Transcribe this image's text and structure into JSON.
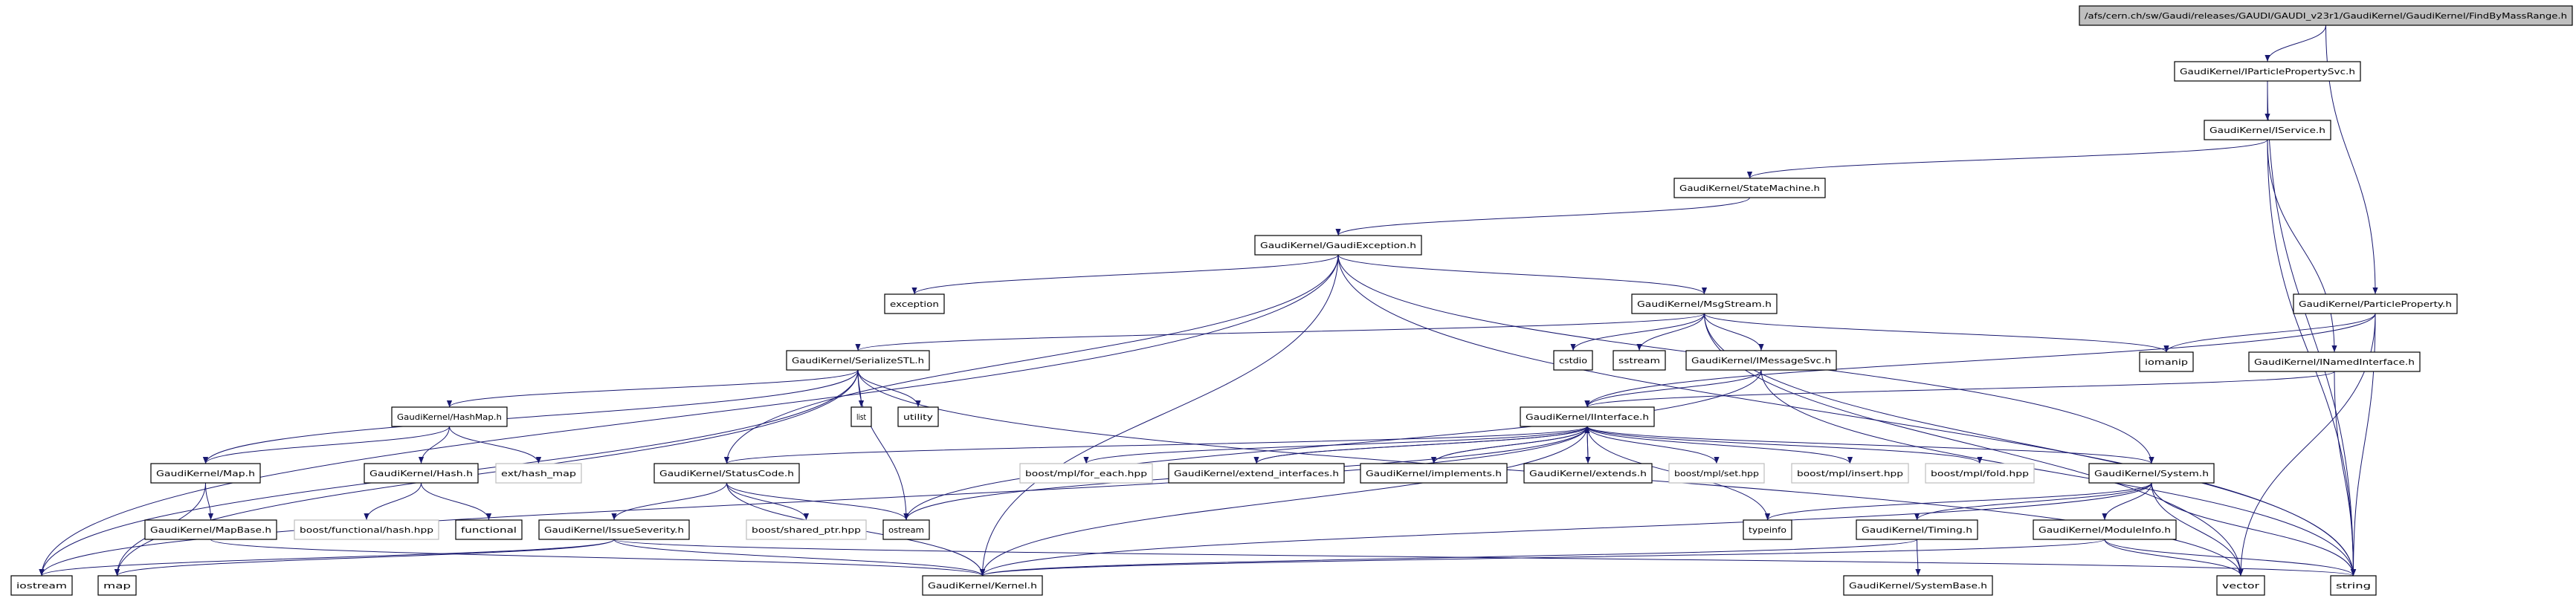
{
  "graph_type": "include dependency graph",
  "edge_color": "#191970",
  "root_fill": "#bfbfbf",
  "external_border": "#bfbfbf",
  "nodes": [
    {
      "id": "root",
      "label": "/afs/cern.ch/sw/Gaudi/releases/GAUDI/GAUDI_v23r1/GaudiKernel/GaudiKernel/FindByMassRange.h",
      "kind": "root"
    },
    {
      "id": "ipps",
      "label": "GaudiKernel/IParticlePropertySvc.h",
      "kind": "doc"
    },
    {
      "id": "iservice",
      "label": "GaudiKernel/IService.h",
      "kind": "doc"
    },
    {
      "id": "statemachine",
      "label": "GaudiKernel/StateMachine.h",
      "kind": "doc"
    },
    {
      "id": "gexc",
      "label": "GaudiKernel/GaudiException.h",
      "kind": "doc"
    },
    {
      "id": "exception",
      "label": "exception",
      "kind": "doc"
    },
    {
      "id": "msgstream",
      "label": "GaudiKernel/MsgStream.h",
      "kind": "doc"
    },
    {
      "id": "pprop",
      "label": "GaudiKernel/ParticleProperty.h",
      "kind": "doc"
    },
    {
      "id": "serial",
      "label": "GaudiKernel/SerializeSTL.h",
      "kind": "doc"
    },
    {
      "id": "cstdio",
      "label": "cstdio",
      "kind": "doc"
    },
    {
      "id": "sstream",
      "label": "sstream",
      "kind": "doc"
    },
    {
      "id": "imsg",
      "label": "GaudiKernel/IMessageSvc.h",
      "kind": "doc"
    },
    {
      "id": "iomanip",
      "label": "iomanip",
      "kind": "doc"
    },
    {
      "id": "inamed",
      "label": "GaudiKernel/INamedInterface.h",
      "kind": "doc"
    },
    {
      "id": "list",
      "label": "list",
      "kind": "doc"
    },
    {
      "id": "utility",
      "label": "utility",
      "kind": "doc"
    },
    {
      "id": "hashmap",
      "label": "GaudiKernel/HashMap.h",
      "kind": "doc"
    },
    {
      "id": "iinterface",
      "label": "GaudiKernel/IInterface.h",
      "kind": "doc"
    },
    {
      "id": "map_h",
      "label": "GaudiKernel/Map.h",
      "kind": "doc"
    },
    {
      "id": "hash_h",
      "label": "GaudiKernel/Hash.h",
      "kind": "doc"
    },
    {
      "id": "exthash",
      "label": "ext/hash_map",
      "kind": "ext"
    },
    {
      "id": "statuscode",
      "label": "GaudiKernel/StatusCode.h",
      "kind": "doc"
    },
    {
      "id": "foreach",
      "label": "boost/mpl/for_each.hpp",
      "kind": "ext"
    },
    {
      "id": "extif",
      "label": "GaudiKernel/extend_interfaces.h",
      "kind": "doc"
    },
    {
      "id": "implements",
      "label": "GaudiKernel/implements.h",
      "kind": "doc"
    },
    {
      "id": "extends",
      "label": "GaudiKernel/extends.h",
      "kind": "doc"
    },
    {
      "id": "mplset",
      "label": "boost/mpl/set.hpp",
      "kind": "ext"
    },
    {
      "id": "mplinsert",
      "label": "boost/mpl/insert.hpp",
      "kind": "ext"
    },
    {
      "id": "mplfold",
      "label": "boost/mpl/fold.hpp",
      "kind": "ext"
    },
    {
      "id": "system",
      "label": "GaudiKernel/System.h",
      "kind": "doc"
    },
    {
      "id": "mapbase",
      "label": "GaudiKernel/MapBase.h",
      "kind": "doc"
    },
    {
      "id": "bfhash",
      "label": "boost/functional/hash.hpp",
      "kind": "ext"
    },
    {
      "id": "functional",
      "label": "functional",
      "kind": "doc"
    },
    {
      "id": "issue",
      "label": "GaudiKernel/IssueSeverity.h",
      "kind": "doc"
    },
    {
      "id": "sharedptr",
      "label": "boost/shared_ptr.hpp",
      "kind": "ext"
    },
    {
      "id": "ostream",
      "label": "ostream",
      "kind": "doc"
    },
    {
      "id": "typeinfo",
      "label": "typeinfo",
      "kind": "doc"
    },
    {
      "id": "timing",
      "label": "GaudiKernel/Timing.h",
      "kind": "doc"
    },
    {
      "id": "moduleinfo",
      "label": "GaudiKernel/ModuleInfo.h",
      "kind": "doc"
    },
    {
      "id": "iostream",
      "label": "iostream",
      "kind": "doc"
    },
    {
      "id": "map",
      "label": "map",
      "kind": "doc"
    },
    {
      "id": "kernel",
      "label": "GaudiKernel/Kernel.h",
      "kind": "doc"
    },
    {
      "id": "sysbase",
      "label": "GaudiKernel/SystemBase.h",
      "kind": "doc"
    },
    {
      "id": "vector",
      "label": "vector",
      "kind": "doc"
    },
    {
      "id": "string",
      "label": "string",
      "kind": "doc"
    }
  ],
  "edges": [
    [
      "root",
      "ipps"
    ],
    [
      "root",
      "pprop"
    ],
    [
      "ipps",
      "iservice"
    ],
    [
      "ipps",
      "string"
    ],
    [
      "iservice",
      "statemachine"
    ],
    [
      "iservice",
      "inamed"
    ],
    [
      "iservice",
      "string"
    ],
    [
      "statemachine",
      "gexc"
    ],
    [
      "gexc",
      "exception"
    ],
    [
      "gexc",
      "msgstream"
    ],
    [
      "gexc",
      "iostream"
    ],
    [
      "gexc",
      "statuscode"
    ],
    [
      "gexc",
      "kernel"
    ],
    [
      "gexc",
      "system"
    ],
    [
      "gexc",
      "string"
    ],
    [
      "msgstream",
      "serial"
    ],
    [
      "msgstream",
      "cstdio"
    ],
    [
      "msgstream",
      "sstream"
    ],
    [
      "msgstream",
      "imsg"
    ],
    [
      "msgstream",
      "iomanip"
    ],
    [
      "msgstream",
      "string"
    ],
    [
      "msgstream",
      "vector"
    ],
    [
      "pprop",
      "iomanip"
    ],
    [
      "pprop",
      "iinterface"
    ],
    [
      "pprop",
      "string"
    ],
    [
      "pprop",
      "vector"
    ],
    [
      "inamed",
      "iinterface"
    ],
    [
      "inamed",
      "string"
    ],
    [
      "serial",
      "list"
    ],
    [
      "serial",
      "utility"
    ],
    [
      "serial",
      "hashmap"
    ],
    [
      "serial",
      "map_h"
    ],
    [
      "serial",
      "iostream"
    ],
    [
      "serial",
      "map"
    ],
    [
      "serial",
      "ostream"
    ],
    [
      "serial",
      "vector"
    ],
    [
      "imsg",
      "iinterface"
    ],
    [
      "imsg",
      "ostream"
    ],
    [
      "imsg",
      "string"
    ],
    [
      "hashmap",
      "map_h"
    ],
    [
      "hashmap",
      "hash_h"
    ],
    [
      "hashmap",
      "exthash"
    ],
    [
      "iinterface",
      "statuscode"
    ],
    [
      "iinterface",
      "foreach"
    ],
    [
      "iinterface",
      "extif"
    ],
    [
      "iinterface",
      "implements"
    ],
    [
      "iinterface",
      "extends"
    ],
    [
      "iinterface",
      "mplset"
    ],
    [
      "iinterface",
      "mplinsert"
    ],
    [
      "iinterface",
      "mplfold"
    ],
    [
      "iinterface",
      "system"
    ],
    [
      "iinterface",
      "ostream"
    ],
    [
      "iinterface",
      "kernel"
    ],
    [
      "iinterface",
      "typeinfo"
    ],
    [
      "iinterface",
      "iostream"
    ],
    [
      "extif",
      "iinterface"
    ],
    [
      "implements",
      "iinterface"
    ],
    [
      "extends",
      "iinterface"
    ],
    [
      "map_h",
      "mapbase"
    ],
    [
      "map_h",
      "map"
    ],
    [
      "hash_h",
      "bfhash"
    ],
    [
      "hash_h",
      "functional"
    ],
    [
      "statuscode",
      "issue"
    ],
    [
      "statuscode",
      "sharedptr"
    ],
    [
      "statuscode",
      "ostream"
    ],
    [
      "statuscode",
      "kernel"
    ],
    [
      "mapbase",
      "kernel"
    ],
    [
      "issue",
      "iostream"
    ],
    [
      "issue",
      "map"
    ],
    [
      "issue",
      "kernel"
    ],
    [
      "issue",
      "string"
    ],
    [
      "system",
      "typeinfo"
    ],
    [
      "system",
      "timing"
    ],
    [
      "system",
      "moduleinfo"
    ],
    [
      "system",
      "kernel"
    ],
    [
      "system",
      "string"
    ],
    [
      "system",
      "vector"
    ],
    [
      "timing",
      "sysbase"
    ],
    [
      "timing",
      "kernel"
    ],
    [
      "moduleinfo",
      "kernel"
    ],
    [
      "moduleinfo",
      "vector"
    ],
    [
      "moduleinfo",
      "string"
    ]
  ]
}
